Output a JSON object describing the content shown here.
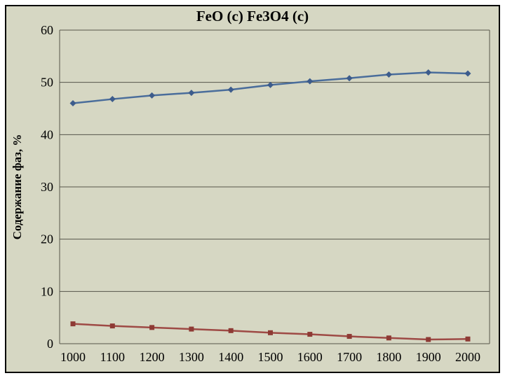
{
  "chart_data": {
    "type": "line",
    "title": "FeO (c) Fe3O4 (c)",
    "ylabel": "Содержание фаз, %",
    "xlabel": "",
    "x": [
      1000,
      1100,
      1200,
      1300,
      1400,
      1500,
      1600,
      1700,
      1800,
      1900,
      2000
    ],
    "ylim": [
      0,
      60
    ],
    "ytick_step": 10,
    "grid": "horizontal",
    "legend_position": "none",
    "series": [
      {
        "name": "FeO (c)",
        "marker": "diamond",
        "color": "#4a6d9b",
        "marker_color": "#3d5c8c",
        "values": [
          46.0,
          46.8,
          47.5,
          48.0,
          48.6,
          49.5,
          50.2,
          50.8,
          51.5,
          51.9,
          51.7
        ]
      },
      {
        "name": "Fe3O4 (c)",
        "marker": "square",
        "color": "#9e4a45",
        "marker_color": "#8e3a34",
        "values": [
          3.8,
          3.4,
          3.1,
          2.8,
          2.5,
          2.1,
          1.8,
          1.4,
          1.1,
          0.8,
          0.9
        ]
      }
    ],
    "colors": {
      "background": "#d6d7c3",
      "grid": "#55554a",
      "border": "#000000",
      "text": "#000000"
    }
  }
}
